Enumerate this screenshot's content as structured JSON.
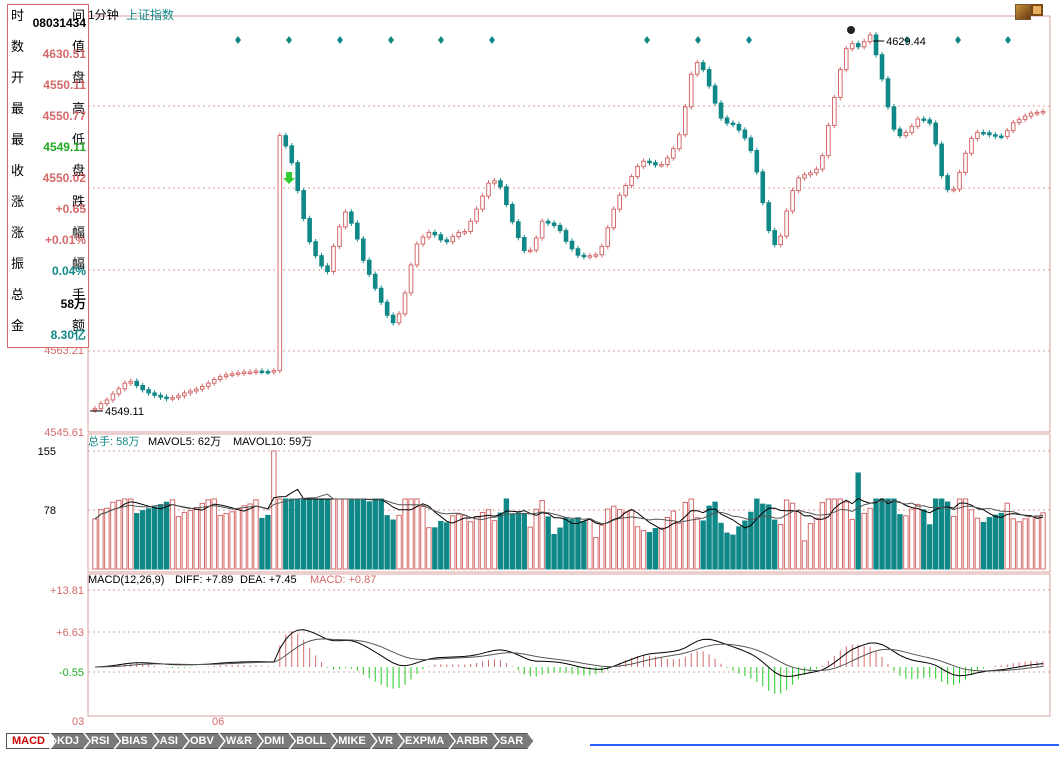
{
  "header": {
    "period": "1分钟",
    "index_name": "上证指数"
  },
  "info_panel": {
    "rows": [
      {
        "label": "时",
        "unit": "间",
        "value": "08031434",
        "color": "#000000"
      },
      {
        "label": "数",
        "unit": "值",
        "value": "4630.51",
        "color": "#d46a6a"
      },
      {
        "label": "开",
        "unit": "盘",
        "value": "4550.11",
        "color": "#d46a6a"
      },
      {
        "label": "最",
        "unit": "高",
        "value": "4550.77",
        "color": "#d46a6a"
      },
      {
        "label": "最",
        "unit": "低",
        "value": "4549.11",
        "color": "#22aa22"
      },
      {
        "label": "收",
        "unit": "盘",
        "value": "4550.02",
        "color": "#d46a6a"
      },
      {
        "label": "涨",
        "unit": "跌",
        "value": "+0.65",
        "color": "#d46a6a"
      },
      {
        "label": "涨",
        "unit": "幅",
        "value": "+0.01%",
        "color": "#d46a6a"
      },
      {
        "label": "振",
        "unit": "幅",
        "value": "0.04%",
        "color": "#118888"
      },
      {
        "label": "总",
        "unit": "手",
        "value": "58万",
        "color": "#000000"
      },
      {
        "label": "金",
        "unit": "额",
        "value": "8.30亿",
        "color": "#118888"
      }
    ]
  },
  "price_panel": {
    "axis_labels": [
      "4563.21",
      "4545.61"
    ],
    "annotations": {
      "high_label": "4629.44",
      "low_label": "4549.11"
    }
  },
  "volume_panel": {
    "legend_total": "总手: 58万",
    "legend_ma5": "MAVOL5: 62万",
    "legend_ma10": "MAVOL10: 59万",
    "axis_labels": [
      "155",
      "78"
    ]
  },
  "macd_panel": {
    "legend_params": "MACD(12,26,9)",
    "legend_diff": "DIFF: +7.89",
    "legend_dea": "DEA: +7.45",
    "legend_macd": "MACD: +0.87",
    "axis_labels": [
      "+13.81",
      "+6.63",
      "-0.55"
    ]
  },
  "time_axis": [
    "03",
    "06"
  ],
  "tabs": [
    "MACD",
    "KDJ",
    "RSI",
    "BIAS",
    "ASI",
    "OBV",
    "W&R",
    "DMI",
    "BOLL",
    "MIKE",
    "VR",
    "EXPMA",
    "ARBR",
    "SAR"
  ],
  "active_tab": "MACD",
  "colors": {
    "up": "#d46a6a",
    "down": "#118888",
    "grid": "#d9a0a0",
    "diff_line": "#000000",
    "dea_line": "#555555",
    "macd_up": "#d46a6a",
    "macd_down": "#22cc22",
    "marker": "#118888"
  },
  "chart_data": {
    "type": "candlestick",
    "price_min": 4545.61,
    "price_max": 4630.51,
    "candles_close": [
      4549.11,
      4550.2,
      4551.0,
      4552.3,
      4553.4,
      4554.6,
      4555.0,
      4554.1,
      4553.2,
      4552.5,
      4552.0,
      4551.6,
      4551.3,
      4551.5,
      4551.9,
      4552.5,
      4552.9,
      4553.3,
      4553.9,
      4554.6,
      4555.4,
      4556.0,
      4556.4,
      4556.6,
      4556.8,
      4557.0,
      4557.0,
      4557.2,
      4557.1,
      4557.0,
      4557.3,
      4607.8,
      4605.6,
      4602.0,
      4596.0,
      4590.0,
      4585.0,
      4582.0,
      4579.8,
      4578.6,
      4584.0,
      4588.2,
      4591.4,
      4589.0,
      4585.6,
      4581.0,
      4578.0,
      4575.0,
      4572.0,
      4569.2,
      4567.6,
      4569.5,
      4574.0,
      4580.0,
      4584.5,
      4586.0,
      4587.0,
      4586.5,
      4585.4,
      4585.0,
      4586.1,
      4587.0,
      4587.2,
      4589.4,
      4592.0,
      4594.8,
      4597.6,
      4598.1,
      4596.8,
      4593.0,
      4589.3,
      4585.9,
      4583.1,
      4583.2,
      4585.8,
      4589.4,
      4589.0,
      4588.5,
      4587.4,
      4585.1,
      4583.5,
      4582.1,
      4581.8,
      4582.0,
      4582.2,
      4584.0,
      4588.0,
      4592.0,
      4595.0,
      4597.1,
      4599.0,
      4601.2,
      4602.3,
      4602.0,
      4601.5,
      4601.6,
      4603.0,
      4605.0,
      4608.0,
      4614.0,
      4621.0,
      4623.5,
      4622.0,
      4618.5,
      4614.8,
      4611.6,
      4610.5,
      4610.2,
      4609.0,
      4607.3,
      4604.6,
      4600.0,
      4593.4,
      4587.4,
      4584.4,
      4586.2,
      4591.6,
      4596.0,
      4598.7,
      4599.4,
      4599.8,
      4600.6,
      4603.5,
      4610.0,
      4616.0,
      4622.0,
      4626.5,
      4627.6,
      4626.9,
      4628.0,
      4629.44,
      4625.2,
      4620.0,
      4614.0,
      4609.2,
      4607.8,
      4608.5,
      4609.8,
      4611.4,
      4611.2,
      4610.5,
      4606.0,
      4599.2,
      4596.2,
      4596.3,
      4599.9,
      4604.0,
      4607.2,
      4608.5,
      4608.4,
      4608.0,
      4607.7,
      4607.6,
      4608.9,
      4610.6,
      4611.3,
      4612.0,
      4612.6,
      4612.8,
      4613.0
    ]
  }
}
